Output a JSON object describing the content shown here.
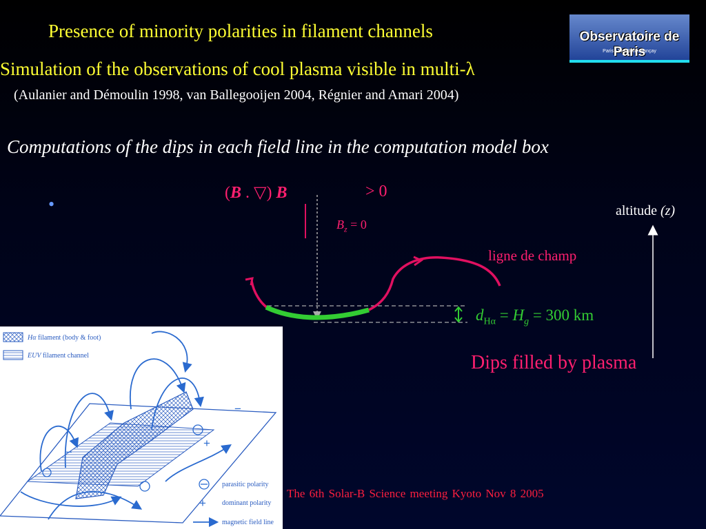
{
  "slide": {
    "title": "Presence   of minority polarities in filament channels",
    "subtitle_prefix": "Simulation of the observations of cool plasma visible in multi-",
    "subtitle_lambda": "λ",
    "references": "(Aulanier and Démoulin 1998, van Ballegooijen 2004, Régnier and Amari 2004)",
    "computations": "Computations of the dips in each field line  in the computation model box",
    "bullet": "• ",
    "bullet_glyph": "⃞"
  },
  "logo": {
    "name": "Observatoire de Paris",
    "subline": "Paris • Meudon • Nançay"
  },
  "diagram": {
    "formula_open": "(",
    "formula_b1": "B",
    "formula_dot": " . ",
    "formula_nabla": "▽",
    "formula_close": ") ",
    "formula_b2": "B",
    "formula_gt": ">  0",
    "bz_symbol": "B",
    "bz_sub": "z",
    "bz_eq": " = 0",
    "altitude_label": "altitude ",
    "altitude_var": "(z)",
    "field_line_label": "ligne de champ",
    "dha_d": "d",
    "dha_sub": "Hα",
    "dha_eq": " = ",
    "dha_h": "H",
    "dha_hsub": "g",
    "dha_value": " = 300 km",
    "dips_label": "Dips filled by plasma",
    "colors": {
      "field_line": "#e01060",
      "dip": "#33cc33",
      "arrow": "#ffffff",
      "dashed": "#aaaaaa"
    }
  },
  "figure": {
    "legend": {
      "halpha_prefix": "Hα",
      "halpha_text": " filament (body & foot)",
      "euv_prefix": "EUV",
      "euv_text": " filament channel",
      "parasitic": "parasitic polarity",
      "dominant": "dominant polarity",
      "magnetic": "magnetic field line"
    },
    "signs": {
      "plus": "+",
      "minus": "−"
    }
  },
  "footer": {
    "text": "The 6th Solar-B Science meeting     Kyoto     Nov 8 2005"
  }
}
